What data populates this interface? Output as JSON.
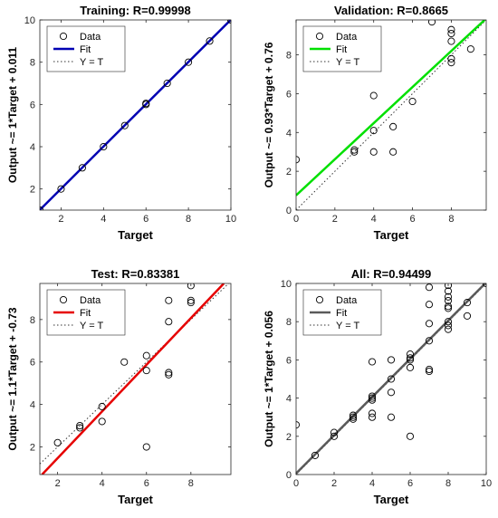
{
  "chart_data": [
    {
      "type": "scatter",
      "title": "Training: R=0.99998",
      "xlabel": "Target",
      "ylabel": "Output ~= 1*Target + 0.011",
      "xlim": [
        1,
        10
      ],
      "ylim": [
        1,
        10
      ],
      "xticks": [
        2,
        4,
        6,
        8,
        10
      ],
      "yticks": [
        2,
        4,
        6,
        8,
        10
      ],
      "grid": false,
      "legend": {
        "placement": "top-left",
        "entries": [
          "Data",
          "Fit",
          "Y = T"
        ]
      },
      "fit": {
        "slope": 1,
        "intercept": 0.011,
        "color": "#0000b3"
      },
      "points": [
        [
          1,
          1
        ],
        [
          2,
          2
        ],
        [
          3,
          3
        ],
        [
          4,
          4
        ],
        [
          5,
          5
        ],
        [
          6,
          6
        ],
        [
          6,
          6.05
        ],
        [
          7,
          7
        ],
        [
          8,
          8
        ],
        [
          9,
          9
        ],
        [
          10,
          10
        ]
      ]
    },
    {
      "type": "scatter",
      "title": "Validation: R=0.8665",
      "xlabel": "Target",
      "ylabel": "Output ~= 0.93*Target + 0.76",
      "xlim": [
        0,
        9.8
      ],
      "ylim": [
        0,
        9.8
      ],
      "xticks": [
        0,
        2,
        4,
        6,
        8
      ],
      "yticks": [
        0,
        2,
        4,
        6,
        8
      ],
      "grid": false,
      "legend": {
        "placement": "top-left",
        "entries": [
          "Data",
          "Fit",
          "Y = T"
        ]
      },
      "fit": {
        "slope": 0.93,
        "intercept": 0.76,
        "color": "#00e000"
      },
      "points": [
        [
          0,
          2.6
        ],
        [
          3,
          3
        ],
        [
          3,
          3.1
        ],
        [
          4,
          4.1
        ],
        [
          4,
          5.9
        ],
        [
          4,
          3
        ],
        [
          5,
          4.3
        ],
        [
          5,
          3
        ],
        [
          6,
          5.6
        ],
        [
          7,
          9.7
        ],
        [
          8,
          9.1
        ],
        [
          8,
          9.3
        ],
        [
          8,
          8.7
        ],
        [
          8,
          7.6
        ],
        [
          8,
          7.8
        ],
        [
          9,
          8.3
        ]
      ]
    },
    {
      "type": "scatter",
      "title": "Test: R=0.83381",
      "xlabel": "Target",
      "ylabel": "Output ~= 1.1*Target + -0.73",
      "xlim": [
        1.2,
        9.8
      ],
      "ylim": [
        0.7,
        9.7
      ],
      "xticks": [
        2,
        4,
        6,
        8
      ],
      "yticks": [
        2,
        4,
        6,
        8
      ],
      "grid": false,
      "legend": {
        "placement": "top-left",
        "entries": [
          "Data",
          "Fit",
          "Y = T"
        ]
      },
      "fit": {
        "slope": 1.1,
        "intercept": -0.73,
        "color": "#e60000"
      },
      "points": [
        [
          2,
          2.2
        ],
        [
          3,
          3
        ],
        [
          3,
          2.9
        ],
        [
          4,
          3.9
        ],
        [
          4,
          3.2
        ],
        [
          5,
          6
        ],
        [
          6,
          6.3
        ],
        [
          6,
          5.6
        ],
        [
          6,
          2
        ],
        [
          7,
          8.9
        ],
        [
          7,
          7.9
        ],
        [
          7,
          5.4
        ],
        [
          7,
          5.5
        ],
        [
          8,
          9.6
        ],
        [
          8,
          8.9
        ],
        [
          8,
          8.8
        ]
      ]
    },
    {
      "type": "scatter",
      "title": "All: R=0.94499",
      "xlabel": "Target",
      "ylabel": "Output ~= 1*Target + 0.056",
      "xlim": [
        0,
        10
      ],
      "ylim": [
        0,
        10
      ],
      "xticks": [
        0,
        2,
        4,
        6,
        8,
        10
      ],
      "yticks": [
        0,
        2,
        4,
        6,
        8,
        10
      ],
      "grid": false,
      "legend": {
        "placement": "top-left",
        "entries": [
          "Data",
          "Fit",
          "Y = T"
        ]
      },
      "fit": {
        "slope": 1,
        "intercept": 0.056,
        "color": "#5a5a5a"
      },
      "points": [
        [
          0,
          2.6
        ],
        [
          1,
          1
        ],
        [
          2,
          2
        ],
        [
          2,
          2.2
        ],
        [
          3,
          3
        ],
        [
          3,
          2.9
        ],
        [
          3,
          3.1
        ],
        [
          4,
          4
        ],
        [
          4,
          4.1
        ],
        [
          4,
          3.9
        ],
        [
          4,
          5.9
        ],
        [
          4,
          3
        ],
        [
          4,
          3.2
        ],
        [
          5,
          5
        ],
        [
          5,
          4.3
        ],
        [
          5,
          3
        ],
        [
          5,
          6
        ],
        [
          6,
          6
        ],
        [
          6,
          6.1
        ],
        [
          6,
          6.3
        ],
        [
          6,
          5.6
        ],
        [
          6,
          2
        ],
        [
          7,
          7
        ],
        [
          7,
          9.8
        ],
        [
          7,
          8.9
        ],
        [
          7,
          7.9
        ],
        [
          7,
          5.4
        ],
        [
          7,
          5.5
        ],
        [
          8,
          8
        ],
        [
          8,
          9.1
        ],
        [
          8,
          9.3
        ],
        [
          8,
          9.6
        ],
        [
          8,
          8.7
        ],
        [
          8,
          8.8
        ],
        [
          8,
          7.6
        ],
        [
          8,
          7.8
        ],
        [
          8,
          9.9
        ],
        [
          9,
          9
        ],
        [
          9,
          8.3
        ],
        [
          10,
          10
        ]
      ]
    }
  ]
}
